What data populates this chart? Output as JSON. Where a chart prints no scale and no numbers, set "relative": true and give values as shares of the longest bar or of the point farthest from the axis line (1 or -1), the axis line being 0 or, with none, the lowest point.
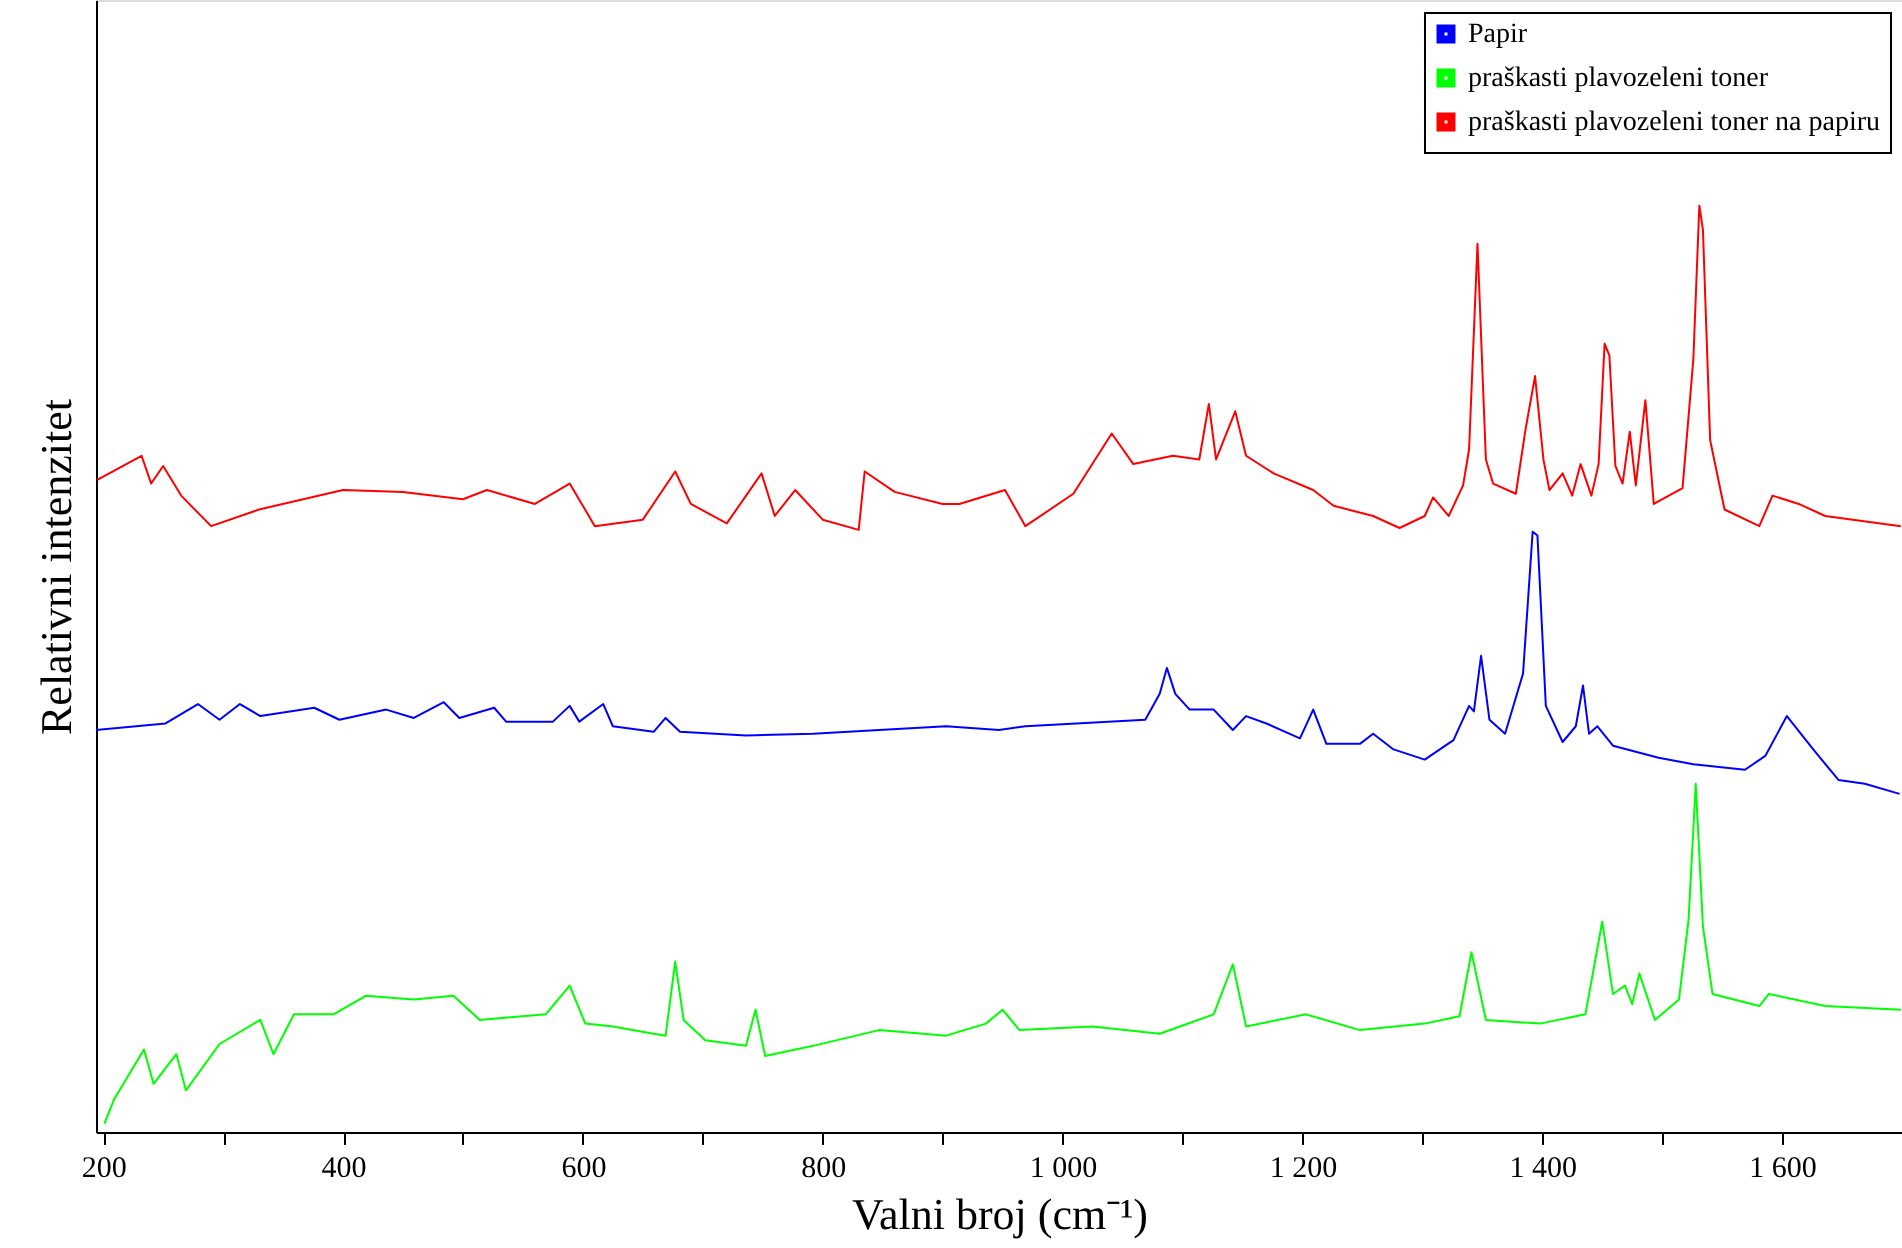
{
  "chart_data": {
    "type": "line",
    "relative": true,
    "xlabel": "Valni broj (cm⁻¹)",
    "ylabel": "Relativni intenzitet",
    "xlim": [
      194,
      1700
    ],
    "xticks": [
      200,
      {
        "value": 300,
        "label": null
      },
      400,
      {
        "value": 500,
        "label": null
      },
      600,
      {
        "value": 700,
        "label": null
      },
      800,
      {
        "value": 900,
        "label": null
      },
      {
        "value": 1000,
        "label": "1 000"
      },
      {
        "value": 1100,
        "label": null
      },
      {
        "value": 1200,
        "label": "1 200"
      },
      {
        "value": 1300,
        "label": null
      },
      {
        "value": 1400,
        "label": "1 400"
      },
      {
        "value": 1500,
        "label": null
      },
      {
        "value": 1600,
        "label": "1 600"
      },
      {
        "value": 1700,
        "label": null
      }
    ],
    "legend": "top right",
    "grid": false,
    "marker": "none",
    "line_style": "solid",
    "series": [
      {
        "name": "Papir",
        "color": "#0000ff",
        "x": [
          194,
          252,
          279,
          297,
          314,
          331,
          376,
          397,
          436,
          459,
          484,
          497,
          526,
          536,
          575,
          589,
          597,
          617,
          625,
          659,
          669,
          681,
          736,
          792,
          847,
          903,
          947,
          969,
          1069,
          1081,
          1087,
          1094,
          1106,
          1126,
          1142,
          1153,
          1170,
          1198,
          1209,
          1220,
          1248,
          1259,
          1276,
          1302,
          1326,
          1339,
          1343,
          1349,
          1356,
          1369,
          1384,
          1392,
          1396,
          1403,
          1417,
          1428,
          1434,
          1439,
          1446,
          1459,
          1497,
          1526,
          1569,
          1586,
          1604,
          1626,
          1647,
          1669,
          1698
        ],
        "values": [
          0.434,
          0.441,
          0.462,
          0.445,
          0.462,
          0.449,
          0.458,
          0.445,
          0.456,
          0.447,
          0.464,
          0.447,
          0.458,
          0.443,
          0.443,
          0.46,
          0.443,
          0.462,
          0.438,
          0.432,
          0.447,
          0.432,
          0.428,
          0.43,
          0.434,
          0.438,
          0.434,
          0.438,
          0.445,
          0.473,
          0.501,
          0.473,
          0.456,
          0.456,
          0.434,
          0.449,
          0.441,
          0.425,
          0.456,
          0.419,
          0.419,
          0.43,
          0.413,
          0.402,
          0.423,
          0.46,
          0.454,
          0.514,
          0.445,
          0.43,
          0.495,
          0.648,
          0.644,
          0.46,
          0.421,
          0.438,
          0.482,
          0.43,
          0.438,
          0.417,
          0.404,
          0.397,
          0.391,
          0.406,
          0.449,
          0.413,
          0.38,
          0.376,
          0.365
        ]
      },
      {
        "name": "praškasti plavozeleni toner",
        "color": "#00ff00",
        "x": [
          201,
          209,
          234,
          242,
          261,
          269,
          297,
          331,
          342,
          359,
          392,
          419,
          459,
          492,
          514,
          569,
          589,
          602,
          625,
          659,
          669,
          677,
          684,
          702,
          736,
          744,
          752,
          792,
          847,
          903,
          936,
          950,
          964,
          1025,
          1081,
          1126,
          1142,
          1153,
          1203,
          1248,
          1302,
          1331,
          1341,
          1353,
          1398,
          1436,
          1450,
          1459,
          1469,
          1475,
          1481,
          1494,
          1514,
          1522,
          1528,
          1534,
          1542,
          1581,
          1589,
          1636,
          1699
        ],
        "values": [
          0.009,
          0.035,
          0.089,
          0.052,
          0.084,
          0.045,
          0.095,
          0.121,
          0.084,
          0.127,
          0.127,
          0.147,
          0.143,
          0.147,
          0.121,
          0.127,
          0.158,
          0.117,
          0.114,
          0.106,
          0.104,
          0.184,
          0.121,
          0.099,
          0.093,
          0.132,
          0.082,
          0.093,
          0.11,
          0.104,
          0.117,
          0.132,
          0.11,
          0.114,
          0.106,
          0.127,
          0.181,
          0.114,
          0.127,
          0.11,
          0.117,
          0.125,
          0.194,
          0.121,
          0.117,
          0.127,
          0.227,
          0.149,
          0.158,
          0.138,
          0.171,
          0.121,
          0.143,
          0.229,
          0.376,
          0.222,
          0.149,
          0.136,
          0.149,
          0.136,
          0.132
        ]
      },
      {
        "name": "praškasti plavozeleni toner na papiru",
        "color": "#ff0000",
        "x": [
          195,
          232,
          240,
          250,
          265,
          290,
          330,
          400,
          450,
          500,
          520,
          560,
          589,
          610,
          650,
          677,
          690,
          720,
          749,
          760,
          777,
          800,
          830,
          835,
          860,
          900,
          914,
          952,
          969,
          1009,
          1041,
          1059,
          1092,
          1114,
          1122,
          1128,
          1144,
          1153,
          1176,
          1209,
          1226,
          1259,
          1281,
          1302,
          1309,
          1322,
          1334,
          1339,
          1346,
          1353,
          1359,
          1378,
          1386,
          1394,
          1401,
          1406,
          1417,
          1425,
          1432,
          1441,
          1447,
          1452,
          1456,
          1461,
          1467,
          1473,
          1478,
          1486,
          1493,
          1517,
          1526,
          1531,
          1534,
          1540,
          1552,
          1581,
          1592,
          1614,
          1636,
          1699
        ],
        "values": [
          0.704,
          0.73,
          0.7,
          0.719,
          0.687,
          0.654,
          0.672,
          0.693,
          0.691,
          0.683,
          0.693,
          0.678,
          0.7,
          0.654,
          0.661,
          0.713,
          0.678,
          0.657,
          0.711,
          0.665,
          0.693,
          0.661,
          0.65,
          0.713,
          0.691,
          0.678,
          0.678,
          0.693,
          0.654,
          0.689,
          0.754,
          0.721,
          0.73,
          0.726,
          0.786,
          0.726,
          0.778,
          0.73,
          0.711,
          0.693,
          0.676,
          0.665,
          0.652,
          0.665,
          0.685,
          0.665,
          0.698,
          0.737,
          0.959,
          0.726,
          0.7,
          0.689,
          0.758,
          0.816,
          0.726,
          0.693,
          0.711,
          0.687,
          0.721,
          0.687,
          0.721,
          0.851,
          0.838,
          0.719,
          0.7,
          0.756,
          0.698,
          0.79,
          0.678,
          0.695,
          0.834,
          1.0,
          0.974,
          0.747,
          0.672,
          0.654,
          0.687,
          0.678,
          0.665,
          0.654
        ]
      }
    ]
  }
}
